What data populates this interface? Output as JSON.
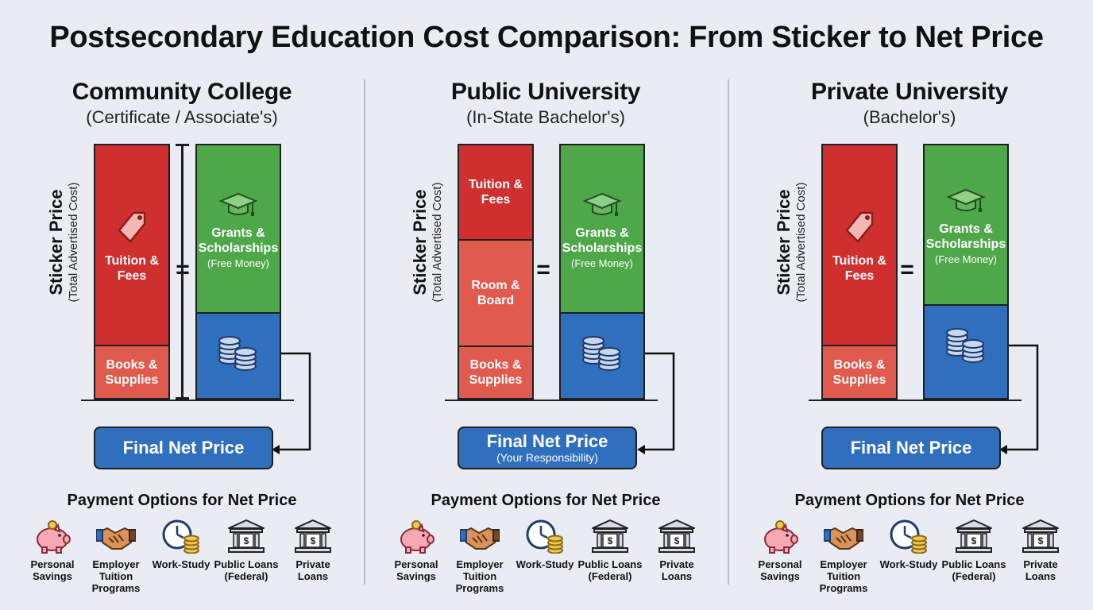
{
  "title": "Postsecondary Education Cost Comparison: From Sticker to Net Price",
  "axis_label": "Sticker Price",
  "axis_sublabel": "(Total Advertised Cost)",
  "aid_label": "Grants & Scholarships",
  "aid_sublabel": "(Free Money)",
  "equals": "=",
  "payment_heading": "Payment Options for Net Price",
  "payment_options": [
    {
      "label": "Personal Savings",
      "icon": "piggy-bank-icon"
    },
    {
      "label": "Employer Tuition Programs",
      "icon": "handshake-icon"
    },
    {
      "label": "Work-Study",
      "icon": "clock-coins-icon"
    },
    {
      "label": "Public Loans (Federal)",
      "icon": "bank-icon"
    },
    {
      "label": "Private Loans",
      "icon": "bank-icon"
    }
  ],
  "colors": {
    "sticker": "#cf2f2f",
    "room": "#e05a4e",
    "books": "#e05a4e",
    "grants": "#4ea84a",
    "net": "#2f6fbe"
  },
  "columns": [
    {
      "title": "Community College",
      "subtitle": "(Certificate / Associate's)",
      "sticker_segments": [
        {
          "label": "Tuition & Fees",
          "share": 0.79,
          "icon": "price-tag-icon"
        },
        {
          "label": "Books & Supplies",
          "share": 0.21
        }
      ],
      "aid_share": 0.66,
      "net_price_label": "Final Net Price",
      "net_price_sublabel": ""
    },
    {
      "title": "Public University",
      "subtitle": "(In-State Bachelor's)",
      "sticker_segments": [
        {
          "label": "Tuition & Fees",
          "share": 0.37
        },
        {
          "label": "Room & Board",
          "share": 0.42
        },
        {
          "label": "Books & Supplies",
          "share": 0.21
        }
      ],
      "aid_share": 0.66,
      "net_price_label": "Final Net Price",
      "net_price_sublabel": "(Your Responsibility)"
    },
    {
      "title": "Private University",
      "subtitle": "(Bachelor's)",
      "sticker_segments": [
        {
          "label": "Tuition & Fees",
          "share": 0.79,
          "icon": "price-tag-icon"
        },
        {
          "label": "Books & Supplies",
          "share": 0.21
        }
      ],
      "aid_share": 0.63,
      "net_price_label": "Final Net Price",
      "net_price_sublabel": ""
    }
  ]
}
